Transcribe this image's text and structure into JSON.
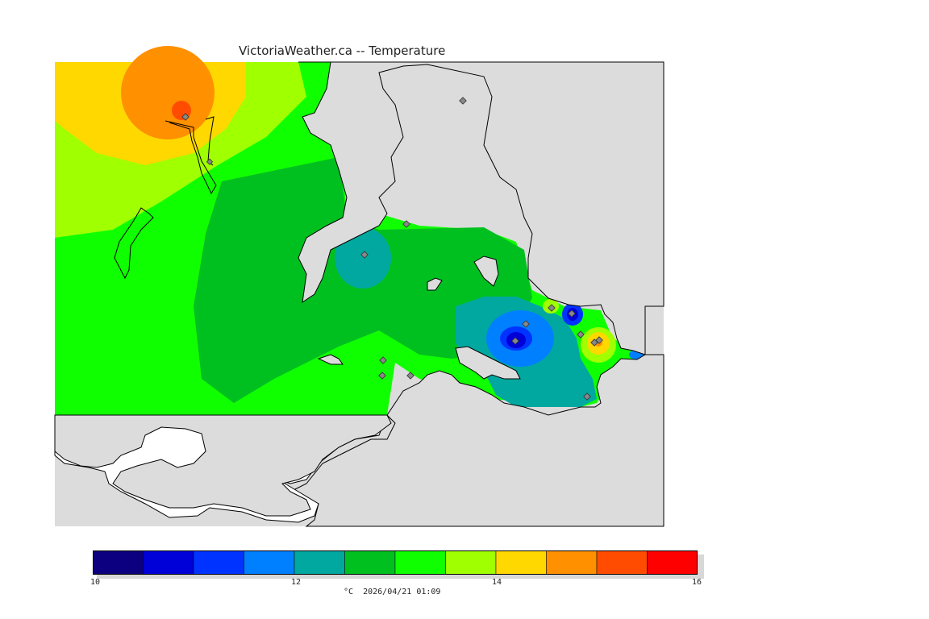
{
  "title": "VictoriaWeather.ca -- Temperature",
  "units": "°C",
  "timestamp": "2026/04/21 01:09",
  "legend": {
    "ticks": [
      "10",
      "12",
      "14",
      "16"
    ],
    "colors": [
      "#0d0080",
      "#0000d8",
      "#0033ff",
      "#0080ff",
      "#00a8a0",
      "#00c020",
      "#10ff00",
      "#a0ff00",
      "#ffd800",
      "#ff9000",
      "#ff4c00",
      "#ff0000"
    ]
  },
  "map_colors": {
    "land_gray": "#dcdcdc",
    "outside_white": "#ffffff",
    "coast": "#000000",
    "station_marker": "#888888"
  }
}
